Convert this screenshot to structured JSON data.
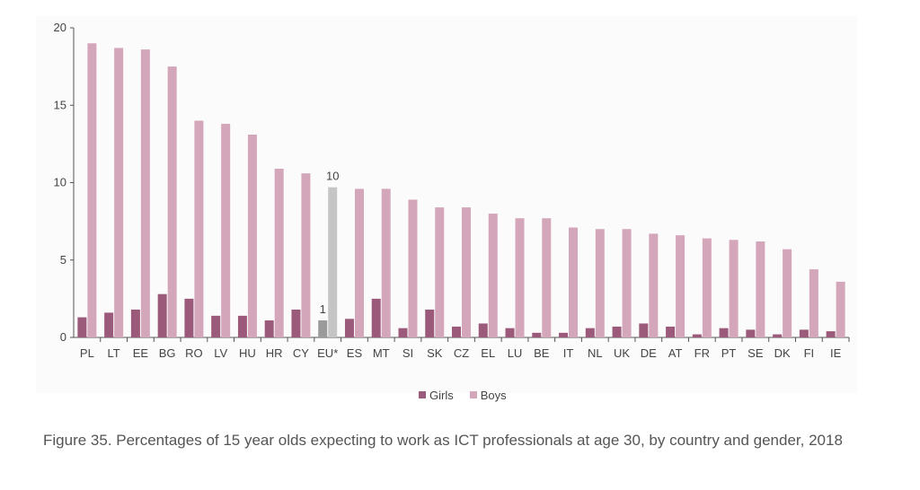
{
  "caption": "Figure 35. Percentages of 15 year olds expecting to work as ICT professionals at age 30, by country and gender, 2018",
  "colors": {
    "girls": "#9b5a7a",
    "boys": "#d3a6ba",
    "eu_girls": "#9a9a9a",
    "eu_boys": "#c5c5c5",
    "axis": "#555555"
  },
  "chart_data": {
    "type": "bar",
    "categories": [
      "PL",
      "LT",
      "EE",
      "BG",
      "RO",
      "LV",
      "HU",
      "HR",
      "CY",
      "EU*",
      "ES",
      "MT",
      "SI",
      "SK",
      "CZ",
      "EL",
      "LU",
      "BE",
      "IT",
      "NL",
      "UK",
      "DE",
      "AT",
      "FR",
      "PT",
      "SE",
      "DK",
      "FI",
      "IE"
    ],
    "series": [
      {
        "name": "Girls",
        "values": [
          1.3,
          1.6,
          1.8,
          2.8,
          2.5,
          1.4,
          1.4,
          1.1,
          1.8,
          1.1,
          1.2,
          2.5,
          0.6,
          1.8,
          0.7,
          0.9,
          0.6,
          0.3,
          0.3,
          0.6,
          0.7,
          0.9,
          0.7,
          0.2,
          0.6,
          0.5,
          0.2,
          0.5,
          0.4
        ]
      },
      {
        "name": "Boys",
        "values": [
          19.0,
          18.7,
          18.6,
          17.5,
          14.0,
          13.8,
          13.1,
          10.9,
          10.6,
          9.7,
          9.6,
          9.6,
          8.9,
          8.4,
          8.4,
          8.0,
          7.7,
          7.7,
          7.1,
          7.0,
          7.0,
          6.7,
          6.6,
          6.4,
          6.3,
          6.2,
          5.7,
          4.4,
          3.6
        ]
      }
    ],
    "highlight_category": "EU*",
    "data_labels": [
      {
        "category": "EU*",
        "series": "Girls",
        "text": "1"
      },
      {
        "category": "EU*",
        "series": "Boys",
        "text": "10"
      }
    ],
    "y_ticks": [
      "0",
      "5",
      "10",
      "15",
      "20"
    ],
    "ylim": [
      0,
      20
    ],
    "title": "",
    "xlabel": "",
    "ylabel": "",
    "grid": false,
    "legend_position": "bottom-center"
  }
}
